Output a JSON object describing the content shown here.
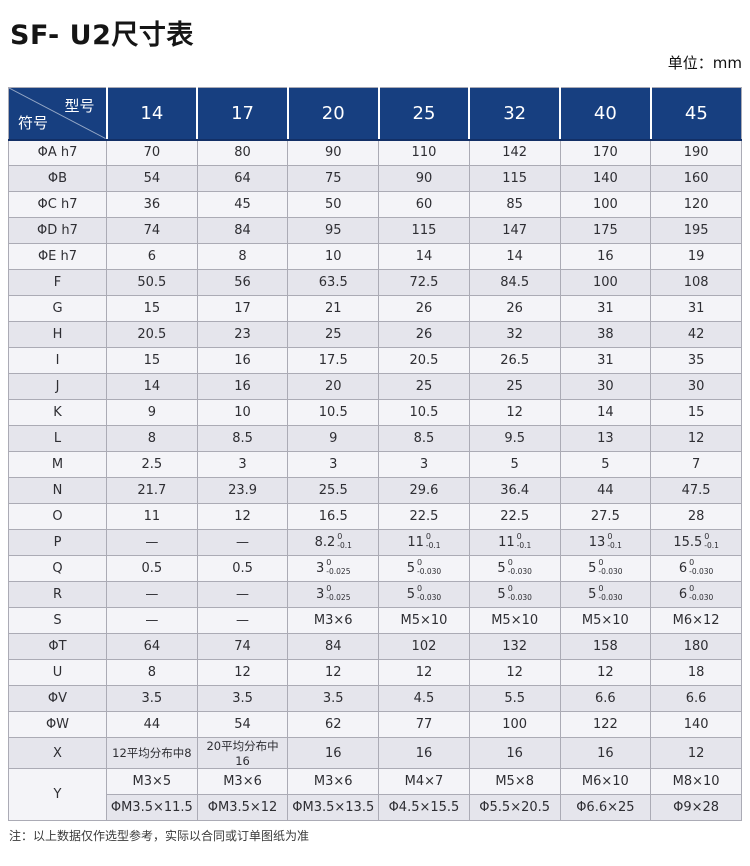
{
  "title": "SF- U2尺寸表",
  "unit": "单位：mm",
  "note": "注：以上数据仅作选型参考，实际以合同或订单图纸为准",
  "colors": {
    "header_bg": "#173F80",
    "row_light": "#F4F4F8",
    "row_gray": "#E5E5EC",
    "border": "#ABABB5"
  },
  "table": {
    "corner": {
      "model_label": "型号",
      "symbol_label": "符号"
    },
    "columns": [
      "14",
      "17",
      "20",
      "25",
      "32",
      "40",
      "45"
    ],
    "rows": [
      {
        "label": "ΦA h7",
        "values": [
          "70",
          "80",
          "90",
          "110",
          "142",
          "170",
          "190"
        ]
      },
      {
        "label": "ΦB",
        "values": [
          "54",
          "64",
          "75",
          "90",
          "115",
          "140",
          "160"
        ]
      },
      {
        "label": "ΦC h7",
        "values": [
          "36",
          "45",
          "50",
          "60",
          "85",
          "100",
          "120"
        ]
      },
      {
        "label": "ΦD h7",
        "values": [
          "74",
          "84",
          "95",
          "115",
          "147",
          "175",
          "195"
        ]
      },
      {
        "label": "ΦE h7",
        "values": [
          "6",
          "8",
          "10",
          "14",
          "14",
          "16",
          "19"
        ]
      },
      {
        "label": "F",
        "values": [
          "50.5",
          "56",
          "63.5",
          "72.5",
          "84.5",
          "100",
          "108"
        ]
      },
      {
        "label": "G",
        "values": [
          "15",
          "17",
          "21",
          "26",
          "26",
          "31",
          "31"
        ]
      },
      {
        "label": "H",
        "values": [
          "20.5",
          "23",
          "25",
          "26",
          "32",
          "38",
          "42"
        ]
      },
      {
        "label": "I",
        "values": [
          "15",
          "16",
          "17.5",
          "20.5",
          "26.5",
          "31",
          "35"
        ]
      },
      {
        "label": "J",
        "values": [
          "14",
          "16",
          "20",
          "25",
          "25",
          "30",
          "30"
        ]
      },
      {
        "label": "K",
        "values": [
          "9",
          "10",
          "10.5",
          "10.5",
          "12",
          "14",
          "15"
        ]
      },
      {
        "label": "L",
        "values": [
          "8",
          "8.5",
          "9",
          "8.5",
          "9.5",
          "13",
          "12"
        ]
      },
      {
        "label": "M",
        "values": [
          "2.5",
          "3",
          "3",
          "3",
          "5",
          "5",
          "7"
        ]
      },
      {
        "label": "N",
        "values": [
          "21.7",
          "23.9",
          "25.5",
          "29.6",
          "36.4",
          "44",
          "47.5"
        ]
      },
      {
        "label": "O",
        "values": [
          "11",
          "12",
          "16.5",
          "22.5",
          "22.5",
          "27.5",
          "28"
        ]
      },
      {
        "label": "P",
        "values": [
          "—",
          "—",
          {
            "main": "8.2",
            "sup": "0",
            "sub": "-0.1"
          },
          {
            "main": "11",
            "sup": "0",
            "sub": "-0.1"
          },
          {
            "main": "11",
            "sup": "0",
            "sub": "-0.1"
          },
          {
            "main": "13",
            "sup": "0",
            "sub": "-0.1"
          },
          {
            "main": "15.5",
            "sup": "0",
            "sub": "-0.1"
          }
        ]
      },
      {
        "label": "Q",
        "values": [
          "0.5",
          "0.5",
          {
            "main": "3",
            "sup": "0",
            "sub": "-0.025"
          },
          {
            "main": "5",
            "sup": "0",
            "sub": "-0.030"
          },
          {
            "main": "5",
            "sup": "0",
            "sub": "-0.030"
          },
          {
            "main": "5",
            "sup": "0",
            "sub": "-0.030"
          },
          {
            "main": "6",
            "sup": "0",
            "sub": "-0.030"
          }
        ]
      },
      {
        "label": "R",
        "values": [
          "—",
          "—",
          {
            "main": "3",
            "sup": "0",
            "sub": "-0.025"
          },
          {
            "main": "5",
            "sup": "0",
            "sub": "-0.030"
          },
          {
            "main": "5",
            "sup": "0",
            "sub": "-0.030"
          },
          {
            "main": "5",
            "sup": "0",
            "sub": "-0.030"
          },
          {
            "main": "6",
            "sup": "0",
            "sub": "-0.030"
          }
        ]
      },
      {
        "label": "S",
        "values": [
          "—",
          "—",
          "M3×6",
          "M5×10",
          "M5×10",
          "M5×10",
          "M6×12"
        ]
      },
      {
        "label": "ΦT",
        "values": [
          "64",
          "74",
          "84",
          "102",
          "132",
          "158",
          "180"
        ]
      },
      {
        "label": "U",
        "values": [
          "8",
          "12",
          "12",
          "12",
          "12",
          "12",
          "18"
        ]
      },
      {
        "label": "ΦV",
        "values": [
          "3.5",
          "3.5",
          "3.5",
          "4.5",
          "5.5",
          "6.6",
          "6.6"
        ]
      },
      {
        "label": "ΦW",
        "values": [
          "44",
          "54",
          "62",
          "77",
          "100",
          "122",
          "140"
        ]
      },
      {
        "label": "X",
        "values": [
          "12平均分布中8",
          "20平均分布中16",
          "16",
          "16",
          "16",
          "16",
          "12"
        ]
      },
      {
        "label": "Y",
        "values": [
          "M3×5",
          "M3×6",
          "M3×6",
          "M4×7",
          "M5×8",
          "M6×10",
          "M8×10"
        ],
        "values2": [
          "ΦM3.5×11.5",
          "ΦM3.5×12",
          "ΦM3.5×13.5",
          "Φ4.5×15.5",
          "Φ5.5×20.5",
          "Φ6.6×25",
          "Φ9×28"
        ]
      }
    ]
  }
}
